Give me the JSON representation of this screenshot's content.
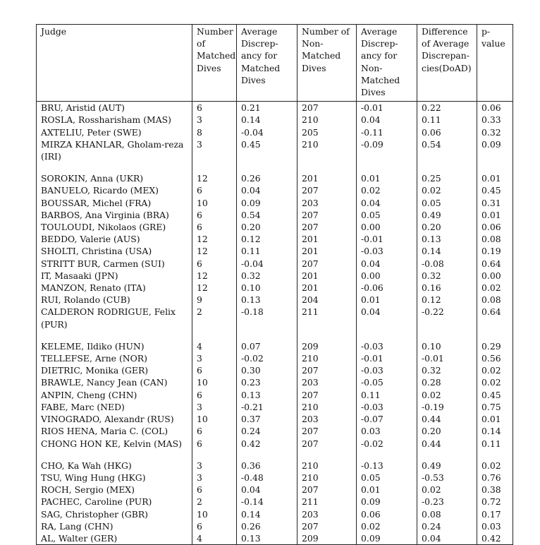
{
  "headers": [
    "Judge",
    "Number of Matched Dives",
    "Average Discrep-ancy for Matched Dives",
    "Number of Non-Matched Dives",
    "Average Discrep-ancy for Non-Matched Dives",
    "Difference of Average Discrepan-cies(DoAD)",
    "p-value"
  ],
  "rows": [
    [
      "BRU, Aristid (AUT)",
      "6",
      "0.21",
      "207",
      "-0.01",
      "0.22",
      "0.06"
    ],
    [
      "ROSLA, Rossharisham (MAS)",
      "3",
      "0.14",
      "210",
      "0.04",
      "0.11",
      "0.33"
    ],
    [
      "AXTELIU, Peter (SWE)",
      "8",
      "-0.04",
      "205",
      "-0.11",
      "0.06",
      "0.32"
    ],
    [
      "MIRZA KHANLAR, Gholam-reza (IRI)",
      "3",
      "0.45",
      "210",
      "-0.09",
      "0.54",
      "0.09"
    ],
    [
      "SOROKIN, Anna (UKR)",
      "12",
      "0.26",
      "201",
      "0.01",
      "0.25",
      "0.01"
    ],
    [
      "BANUELO, Ricardo (MEX)",
      "6",
      "0.04",
      "207",
      "0.02",
      "0.02",
      "0.45"
    ],
    [
      "BOUSSAR, Michel (FRA)",
      "10",
      "0.09",
      "203",
      "0.04",
      "0.05",
      "0.31"
    ],
    [
      "BARBOS, Ana Virginia (BRA)",
      "6",
      "0.54",
      "207",
      "0.05",
      "0.49",
      "0.01"
    ],
    [
      "TOULOUDI, Nikolaos (GRE)",
      "6",
      "0.20",
      "207",
      "0.00",
      "0.20",
      "0.06"
    ],
    [
      "BEDDO, Valerie (AUS)",
      "12",
      "0.12",
      "201",
      "-0.01",
      "0.13",
      "0.08"
    ],
    [
      "SHOLTI, Christina (USA)",
      "12",
      "0.11",
      "201",
      "-0.03",
      "0.14",
      "0.19"
    ],
    [
      "STRITT BUR, Carmen (SUI)",
      "6",
      "-0.04",
      "207",
      "0.04",
      "-0.08",
      "0.64"
    ],
    [
      "IT, Masaaki (JPN)",
      "12",
      "0.32",
      "201",
      "0.00",
      "0.32",
      "0.00"
    ],
    [
      "MANZON, Renato (ITA)",
      "12",
      "0.10",
      "201",
      "-0.06",
      "0.16",
      "0.02"
    ],
    [
      "RUI, Rolando (CUB)",
      "9",
      "0.13",
      "204",
      "0.01",
      "0.12",
      "0.08"
    ],
    [
      "CALDERON RODRIGUE, Felix (PUR)",
      "2",
      "-0.18",
      "211",
      "0.04",
      "-0.22",
      "0.64"
    ],
    [
      "KELEME, Ildiko (HUN)",
      "4",
      "0.07",
      "209",
      "-0.03",
      "0.10",
      "0.29"
    ],
    [
      "TELLEFSE, Arne (NOR)",
      "3",
      "-0.02",
      "210",
      "-0.01",
      "-0.01",
      "0.56"
    ],
    [
      "DIETRIC, Monika (GER)",
      "6",
      "0.30",
      "207",
      "-0.03",
      "0.32",
      "0.02"
    ],
    [
      "BRAWLE, Nancy Jean (CAN)",
      "10",
      "0.23",
      "203",
      "-0.05",
      "0.28",
      "0.02"
    ],
    [
      "ANPIN, Cheng (CHN)",
      "6",
      "0.13",
      "207",
      "0.11",
      "0.02",
      "0.45"
    ],
    [
      "FABE, Marc (NED)",
      "3",
      "-0.21",
      "210",
      "-0.03",
      "-0.19",
      "0.75"
    ],
    [
      "VINOGRADO, Alexandr (RUS)",
      "10",
      "0.37",
      "203",
      "-0.07",
      "0.44",
      "0.01"
    ],
    [
      "RIOS HENA, Maria C. (COL)",
      "6",
      "0.24",
      "207",
      "0.03",
      "0.20",
      "0.14"
    ],
    [
      "CHONG HON KE, Kelvin (MAS)",
      "6",
      "0.42",
      "207",
      "-0.02",
      "0.44",
      "0.11"
    ],
    [
      "CHO, Ka Wah (HKG)",
      "3",
      "0.36",
      "210",
      "-0.13",
      "0.49",
      "0.02"
    ],
    [
      "TSU, Wing Hung (HKG)",
      "3",
      "-0.48",
      "210",
      "0.05",
      "-0.53",
      "0.76"
    ],
    [
      "ROCH, Sergio (MEX)",
      "6",
      "0.04",
      "207",
      "0.01",
      "0.02",
      "0.38"
    ],
    [
      "PACHEC, Caroline (PUR)",
      "2",
      "-0.14",
      "211",
      "0.09",
      "-0.23",
      "0.72"
    ],
    [
      "SAG, Christopher (GBR)",
      "10",
      "0.14",
      "203",
      "0.06",
      "0.08",
      "0.17"
    ],
    [
      "RA, Lang (CHN)",
      "6",
      "0.26",
      "207",
      "0.02",
      "0.24",
      "0.03"
    ],
    [
      "AL, Walter (GER)",
      "4",
      "0.13",
      "209",
      "0.09",
      "0.04",
      "0.42"
    ]
  ]
}
